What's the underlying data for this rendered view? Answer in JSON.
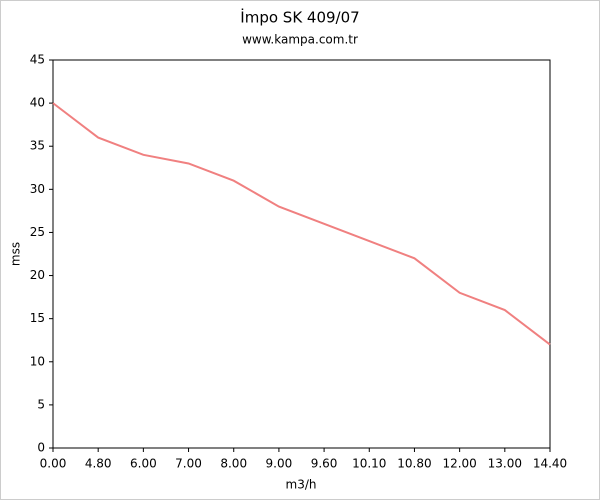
{
  "chart_data": {
    "type": "line",
    "title": "İmpo SK 409/07",
    "subtitle": "www.kampa.com.tr",
    "x_label": "m3/h",
    "y_label": "mss",
    "categories": [
      "0.00",
      "4.80",
      "6.00",
      "7.00",
      "8.00",
      "9.00",
      "9.60",
      "10.10",
      "10.80",
      "12.00",
      "13.00",
      "14.40"
    ],
    "values": [
      40,
      36,
      34,
      33,
      31,
      28,
      26,
      24,
      22,
      18,
      16,
      12
    ],
    "color": "#f08080",
    "ylim": [
      0,
      45
    ],
    "yticks": [
      0,
      5,
      10,
      15,
      20,
      25,
      30,
      35,
      40,
      45
    ],
    "grid": false
  }
}
